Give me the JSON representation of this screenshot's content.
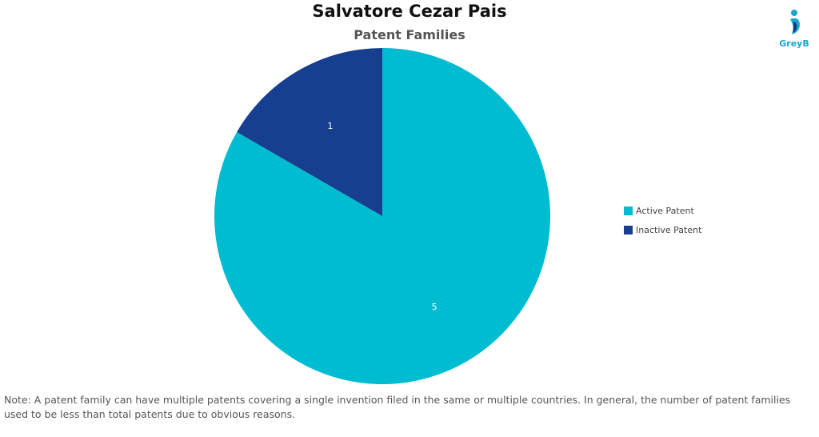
{
  "header": {
    "title": "Salvatore Cezar Pais",
    "subtitle": "Patent Families"
  },
  "logo": {
    "text": "GreyB",
    "color": "#1aa5c9",
    "accent": "#17357e"
  },
  "chart_data": {
    "type": "pie",
    "title": "Salvatore Cezar Pais",
    "subtitle": "Patent Families",
    "slices": [
      {
        "name": "Active Patent",
        "value": 5,
        "label": "5",
        "color": "#00bcd0"
      },
      {
        "name": "Inactive Patent",
        "value": 1,
        "label": "1",
        "color": "#173f8f"
      }
    ],
    "start": "top",
    "legend_position": "right"
  },
  "legend": {
    "items": [
      {
        "label": "Active Patent",
        "color": "#00bcd0"
      },
      {
        "label": "Inactive Patent",
        "color": "#173f8f"
      }
    ]
  },
  "footnote": "Note: A patent family can have multiple patents covering a single invention filed in the same or multiple countries. In general, the number of patent families used to be less than total patents due to obvious reasons."
}
